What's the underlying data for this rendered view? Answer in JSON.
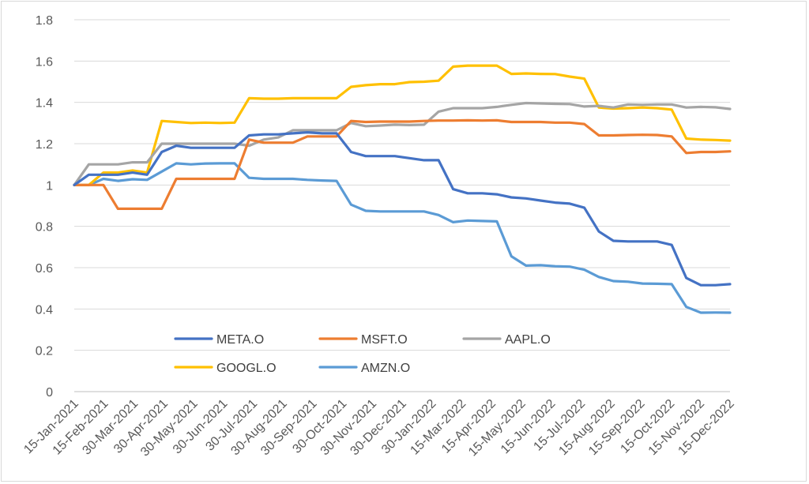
{
  "chart_data": {
    "type": "line",
    "title": "",
    "xlabel": "",
    "ylabel": "",
    "ylim": [
      0,
      1.8
    ],
    "y_ticks": [
      "0",
      "0.2",
      "0.4",
      "0.6",
      "0.8",
      "1",
      "1.2",
      "1.4",
      "1.6",
      "1.8"
    ],
    "grid": "horizontal",
    "legend_position": "bottom-left inside plot",
    "x_tick_labels": [
      "15-Jan-2021",
      "15-Feb-2021",
      "30-Mar-2021",
      "30-Apr-2021",
      "30-May-2021",
      "30-Jun-2021",
      "30-Jul-2021",
      "30-Aug-2021",
      "30-Sep-2021",
      "30-Oct-2021",
      "30-Nov-2021",
      "30-Dec-2021",
      "30-Jan-2022",
      "15-Mar-2022",
      "15-Apr-2022",
      "15-May-2022",
      "15-Jun-2022",
      "15-Jul-2022",
      "15-Aug-2022",
      "15-Sep-2022",
      "15-Oct-2022",
      "15-Nov-2022",
      "15-Dec-2022"
    ],
    "series": [
      {
        "name": "META.O",
        "color": "#4472C4",
        "values": [
          1.0,
          1.05,
          1.05,
          1.05,
          1.06,
          1.05,
          1.16,
          1.19,
          1.18,
          1.18,
          1.18,
          1.18,
          1.24,
          1.245,
          1.245,
          1.25,
          1.255,
          1.25,
          1.25,
          1.16,
          1.14,
          1.14,
          1.14,
          1.13,
          1.12,
          1.12,
          0.98,
          0.96,
          0.96,
          0.955,
          0.94,
          0.935,
          0.925,
          0.915,
          0.91,
          0.89,
          0.775,
          0.73,
          0.727,
          0.727,
          0.727,
          0.71,
          0.55,
          0.515,
          0.515,
          0.52
        ]
      },
      {
        "name": "MSFT.O",
        "color": "#ED7D31",
        "values": [
          1.0,
          1.0,
          1.0,
          0.885,
          0.885,
          0.885,
          0.885,
          1.03,
          1.03,
          1.03,
          1.03,
          1.03,
          1.22,
          1.205,
          1.205,
          1.205,
          1.235,
          1.235,
          1.235,
          1.31,
          1.305,
          1.307,
          1.307,
          1.307,
          1.31,
          1.312,
          1.312,
          1.313,
          1.312,
          1.313,
          1.305,
          1.305,
          1.305,
          1.302,
          1.302,
          1.295,
          1.24,
          1.24,
          1.242,
          1.243,
          1.242,
          1.235,
          1.155,
          1.16,
          1.16,
          1.163
        ]
      },
      {
        "name": "AAPL.O",
        "color": "#A5A5A5",
        "values": [
          1.0,
          1.1,
          1.1,
          1.1,
          1.11,
          1.11,
          1.2,
          1.2,
          1.2,
          1.2,
          1.2,
          1.2,
          1.19,
          1.22,
          1.23,
          1.265,
          1.265,
          1.265,
          1.265,
          1.3,
          1.285,
          1.288,
          1.292,
          1.29,
          1.292,
          1.355,
          1.372,
          1.372,
          1.372,
          1.378,
          1.388,
          1.397,
          1.395,
          1.393,
          1.392,
          1.38,
          1.383,
          1.375,
          1.39,
          1.388,
          1.39,
          1.39,
          1.375,
          1.378,
          1.376,
          1.368
        ]
      },
      {
        "name": "GOOGL.O",
        "color": "#FFC000",
        "values": [
          1.0,
          1.0,
          1.06,
          1.06,
          1.07,
          1.06,
          1.31,
          1.305,
          1.3,
          1.302,
          1.3,
          1.302,
          1.42,
          1.418,
          1.418,
          1.42,
          1.42,
          1.42,
          1.42,
          1.475,
          1.483,
          1.488,
          1.488,
          1.498,
          1.5,
          1.505,
          1.573,
          1.578,
          1.578,
          1.578,
          1.538,
          1.54,
          1.538,
          1.537,
          1.525,
          1.515,
          1.375,
          1.37,
          1.372,
          1.375,
          1.372,
          1.365,
          1.225,
          1.22,
          1.218,
          1.215
        ]
      },
      {
        "name": "AMZN.O",
        "color": "#5B9BD5",
        "values": [
          1.0,
          1.0,
          1.03,
          1.02,
          1.028,
          1.025,
          1.065,
          1.105,
          1.1,
          1.104,
          1.105,
          1.105,
          1.035,
          1.03,
          1.03,
          1.03,
          1.025,
          1.022,
          1.02,
          0.905,
          0.875,
          0.872,
          0.872,
          0.872,
          0.872,
          0.855,
          0.82,
          0.828,
          0.826,
          0.824,
          0.655,
          0.61,
          0.612,
          0.607,
          0.605,
          0.59,
          0.555,
          0.535,
          0.532,
          0.523,
          0.522,
          0.52,
          0.41,
          0.382,
          0.383,
          0.382
        ]
      }
    ]
  }
}
